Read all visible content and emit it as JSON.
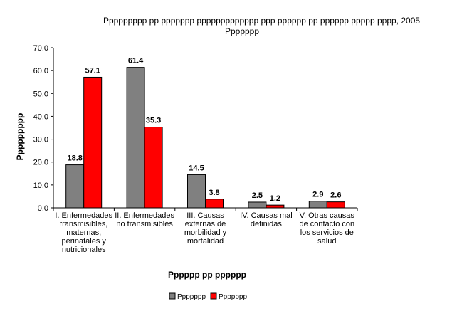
{
  "chart_data": {
    "type": "bar",
    "title_line1": "Ppppppppp pp ppppppp ppppppppppppp ppp pppppp pp pppppp ppppp pppp, 2005",
    "title_line2": "Ppppppp",
    "xlabel": "Pppppp pp pppppp",
    "ylabel": "Ppppppppp",
    "ylim": [
      0,
      70
    ],
    "yticks": [
      "0.0",
      "10.0",
      "20.0",
      "30.0",
      "40.0",
      "50.0",
      "60.0",
      "70.0"
    ],
    "categories": [
      [
        "I. Enfermedades",
        "transmisibles,",
        "maternas,",
        "perinatales y",
        "nutricionales"
      ],
      [
        "II. Enfermedades",
        "no transmisibles"
      ],
      [
        "III. Causas",
        "externas de",
        "morbilidad y",
        "mortalidad"
      ],
      [
        "IV. Causas mal",
        "definidas"
      ],
      [
        "V. Otras causas",
        "de contacto con",
        "los servicios de",
        "salud"
      ]
    ],
    "series": [
      {
        "name": "Ppppppp",
        "color": "#808080",
        "values": [
          18.8,
          61.4,
          14.5,
          2.5,
          2.9
        ],
        "labels": [
          "18.8",
          "61.4",
          "14.5",
          "2.5",
          "2.9"
        ]
      },
      {
        "name": "Ppppppp",
        "color": "#ff0000",
        "values": [
          57.1,
          35.3,
          3.8,
          1.2,
          2.6
        ],
        "labels": [
          "57.1",
          "35.3",
          "3.8",
          "1.2",
          "2.6"
        ]
      }
    ],
    "grid": false,
    "legend": "bottom"
  }
}
